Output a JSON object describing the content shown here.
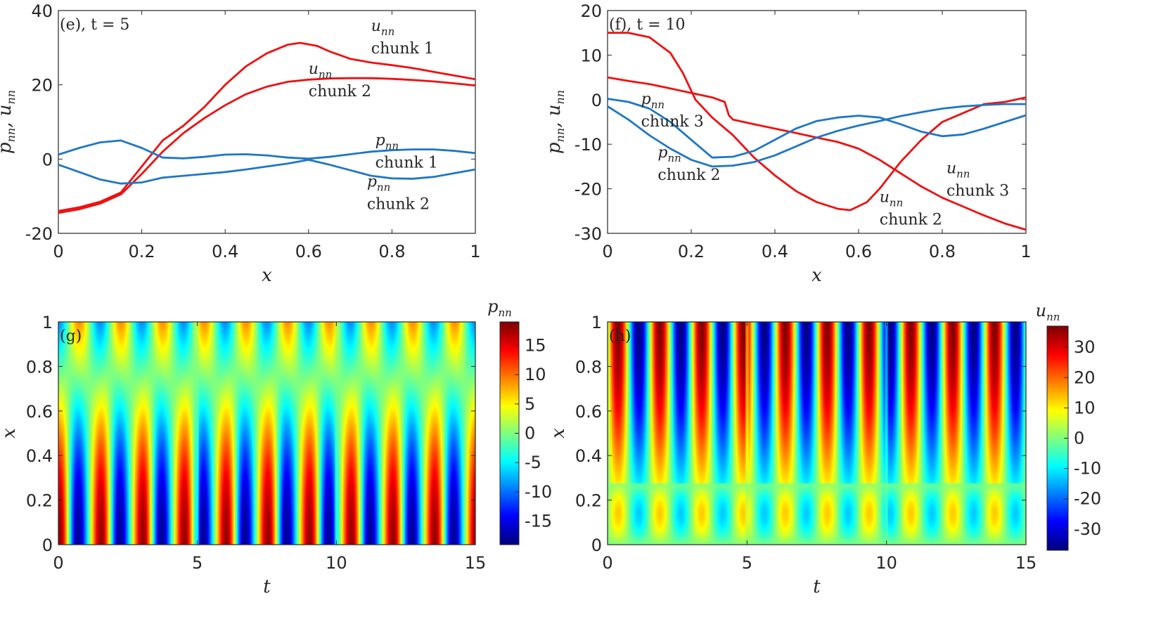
{
  "chart_data": [
    {
      "type": "line",
      "panel_label": "(e), t = 5",
      "xlabel": "x",
      "ylabel": "p_nn, u_nn",
      "xlim": [
        0,
        1
      ],
      "ylim": [
        -20,
        40
      ],
      "xticks": [
        "0",
        "0.2",
        "0.4",
        "0.6",
        "0.8",
        "1"
      ],
      "yticks": [
        "-20",
        "0",
        "20",
        "40"
      ],
      "series": [
        {
          "color": "#ee1111",
          "x": [
            0,
            0.05,
            0.1,
            0.15,
            0.2,
            0.25,
            0.3,
            0.35,
            0.4,
            0.45,
            0.5,
            0.55,
            0.58,
            0.62,
            0.65,
            0.7,
            0.75,
            0.8,
            0.85,
            0.9,
            0.95,
            1
          ],
          "y": [
            -14,
            -13,
            -11.5,
            -9,
            -2,
            5,
            9,
            14,
            20,
            25,
            28.5,
            30.8,
            31.3,
            30.5,
            29,
            27,
            26,
            25.3,
            24.5,
            23.5,
            22.5,
            21.5
          ]
        },
        {
          "color": "#ee1111",
          "x": [
            0,
            0.05,
            0.1,
            0.15,
            0.2,
            0.25,
            0.3,
            0.35,
            0.4,
            0.45,
            0.5,
            0.55,
            0.6,
            0.65,
            0.7,
            0.75,
            0.8,
            0.85,
            0.9,
            0.95,
            1
          ],
          "y": [
            -14.5,
            -13.5,
            -12,
            -9.5,
            -4,
            2,
            7,
            11,
            14.5,
            17.5,
            19.5,
            20.8,
            21.4,
            21.7,
            21.8,
            21.8,
            21.6,
            21.3,
            20.9,
            20.4,
            19.8
          ]
        },
        {
          "color": "#1f77c4",
          "x": [
            0,
            0.05,
            0.1,
            0.15,
            0.2,
            0.25,
            0.3,
            0.35,
            0.4,
            0.45,
            0.5,
            0.55,
            0.6,
            0.65,
            0.7,
            0.75,
            0.8,
            0.85,
            0.9,
            0.95,
            1
          ],
          "y": [
            1.2,
            3,
            4.5,
            5,
            3,
            0.4,
            0.2,
            0.6,
            1.2,
            1.3,
            1,
            0.4,
            0.1,
            0.6,
            1.3,
            2,
            2.4,
            2.6,
            2.6,
            2.2,
            1.6
          ]
        },
        {
          "color": "#1f77c4",
          "x": [
            0,
            0.05,
            0.1,
            0.15,
            0.2,
            0.25,
            0.3,
            0.35,
            0.4,
            0.45,
            0.5,
            0.55,
            0.6,
            0.65,
            0.7,
            0.75,
            0.8,
            0.85,
            0.9,
            0.95,
            1
          ],
          "y": [
            -1.5,
            -3.5,
            -5.5,
            -6.6,
            -6.3,
            -5,
            -4.5,
            -4,
            -3.5,
            -2.8,
            -2,
            -1.2,
            -0.2,
            -1.5,
            -3,
            -4.5,
            -5.2,
            -5.3,
            -4.8,
            -3.8,
            -2.8
          ]
        }
      ],
      "annotations": [
        {
          "sym": "u",
          "sub": "nn",
          "label": "chunk 1",
          "x": 0.75,
          "y": 34.5
        },
        {
          "sym": "u",
          "sub": "nn",
          "label": "chunk 2",
          "x": 0.6,
          "y": 23
        },
        {
          "sym": "p",
          "sub": "nn",
          "label": "chunk 1",
          "x": 0.76,
          "y": 3.8
        },
        {
          "sym": "p",
          "sub": "nn",
          "label": "chunk 2",
          "x": 0.74,
          "y": -7.4
        }
      ]
    },
    {
      "type": "line",
      "panel_label": "(f), t = 10",
      "xlabel": "x",
      "ylabel": "p_nn, u_nn",
      "xlim": [
        0,
        1
      ],
      "ylim": [
        -30,
        20
      ],
      "xticks": [
        "0",
        "0.2",
        "0.4",
        "0.6",
        "0.8",
        "1"
      ],
      "yticks": [
        "-30",
        "-20",
        "-10",
        "0",
        "10",
        "20"
      ],
      "series": [
        {
          "color": "#ee1111",
          "x": [
            0,
            0.05,
            0.1,
            0.15,
            0.18,
            0.21,
            0.25,
            0.3,
            0.35,
            0.4,
            0.45,
            0.5,
            0.55,
            0.58,
            0.62,
            0.65,
            0.7,
            0.75,
            0.8,
            0.85,
            0.9,
            0.95,
            1
          ],
          "y": [
            15,
            15,
            14,
            10.5,
            6,
            0,
            -4,
            -8,
            -13,
            -17,
            -20.5,
            -23,
            -24.5,
            -24.8,
            -23,
            -20,
            -14,
            -9,
            -5,
            -3,
            -1,
            -0.5,
            0.5
          ]
        },
        {
          "color": "#ee1111",
          "x": [
            0,
            0.05,
            0.1,
            0.15,
            0.2,
            0.25,
            0.28,
            0.29,
            0.3,
            0.35,
            0.4,
            0.45,
            0.5,
            0.55,
            0.6,
            0.65,
            0.7,
            0.75,
            0.8,
            0.85,
            0.9,
            0.95,
            1
          ],
          "y": [
            5,
            4.2,
            3.5,
            2.5,
            1.5,
            0.5,
            -0.5,
            -3.5,
            -4.5,
            -5.5,
            -6.5,
            -7.5,
            -8.5,
            -9.5,
            -11,
            -13.5,
            -16.5,
            -19.5,
            -22,
            -24,
            -26,
            -27.8,
            -29.2
          ]
        },
        {
          "color": "#1f77c4",
          "x": [
            0,
            0.05,
            0.1,
            0.15,
            0.2,
            0.25,
            0.3,
            0.35,
            0.4,
            0.45,
            0.5,
            0.55,
            0.6,
            0.65,
            0.7,
            0.75,
            0.8,
            0.85,
            0.9,
            0.95,
            1
          ],
          "y": [
            0.2,
            -0.5,
            -2,
            -5,
            -9,
            -13,
            -12.8,
            -11.5,
            -9,
            -6.5,
            -4.8,
            -4,
            -3.6,
            -4,
            -5.5,
            -7.2,
            -8.2,
            -7.8,
            -6.5,
            -5,
            -3.5
          ]
        },
        {
          "color": "#1f77c4",
          "x": [
            0,
            0.05,
            0.1,
            0.15,
            0.2,
            0.25,
            0.3,
            0.35,
            0.4,
            0.45,
            0.5,
            0.55,
            0.6,
            0.65,
            0.7,
            0.75,
            0.8,
            0.85,
            0.9,
            0.95,
            1
          ],
          "y": [
            -1.5,
            -4.5,
            -8,
            -11,
            -13.5,
            -15,
            -14.8,
            -14,
            -12.5,
            -10.5,
            -8.5,
            -7,
            -5.8,
            -4.8,
            -3.7,
            -2.8,
            -2,
            -1.5,
            -1.2,
            -1,
            -1
          ]
        }
      ],
      "annotations": [
        {
          "sym": "p",
          "sub": "nn",
          "label": "chunk 3",
          "x": 0.08,
          "y": -1
        },
        {
          "sym": "p",
          "sub": "nn",
          "label": "chunk 2",
          "x": 0.12,
          "y": -13
        },
        {
          "sym": "u",
          "sub": "nn",
          "label": "chunk 3",
          "x": 0.81,
          "y": -16.5
        },
        {
          "sym": "u",
          "sub": "nn",
          "label": "chunk 2",
          "x": 0.65,
          "y": -23
        }
      ]
    },
    {
      "type": "heatmap",
      "panel_label": "(g)",
      "xlabel": "t",
      "ylabel": "x",
      "xlim": [
        0,
        15
      ],
      "ylim": [
        0,
        1
      ],
      "xticks": [
        "0",
        "5",
        "10",
        "15"
      ],
      "yticks": [
        "0",
        "0.2",
        "0.4",
        "0.6",
        "0.8",
        "1"
      ],
      "colormap": "jet",
      "colorbar": {
        "title_sym": "p",
        "title_sub": "nn",
        "range": [
          -19,
          19
        ],
        "ticks": [
          "15",
          "10",
          "5",
          "0",
          "-5",
          "-10",
          "-15"
        ]
      },
      "field": {
        "period": 1.5,
        "node": 0.75,
        "chunk_breaks": [
          5,
          10
        ]
      }
    },
    {
      "type": "heatmap",
      "panel_label": "(h)",
      "xlabel": "t",
      "ylabel": "x",
      "xlim": [
        0,
        15
      ],
      "ylim": [
        0,
        1
      ],
      "xticks": [
        "0",
        "5",
        "10",
        "15"
      ],
      "yticks": [
        "0",
        "0.2",
        "0.4",
        "0.6",
        "0.8",
        "1"
      ],
      "colormap": "jet",
      "colorbar": {
        "title_sym": "u",
        "title_sub": "nn",
        "range": [
          -37,
          37
        ],
        "ticks": [
          "30",
          "20",
          "10",
          "0",
          "-10",
          "-20",
          "-30"
        ]
      },
      "field": {
        "period": 1.5,
        "node": 0.28,
        "chunk_breaks": [
          5,
          10
        ]
      }
    }
  ]
}
